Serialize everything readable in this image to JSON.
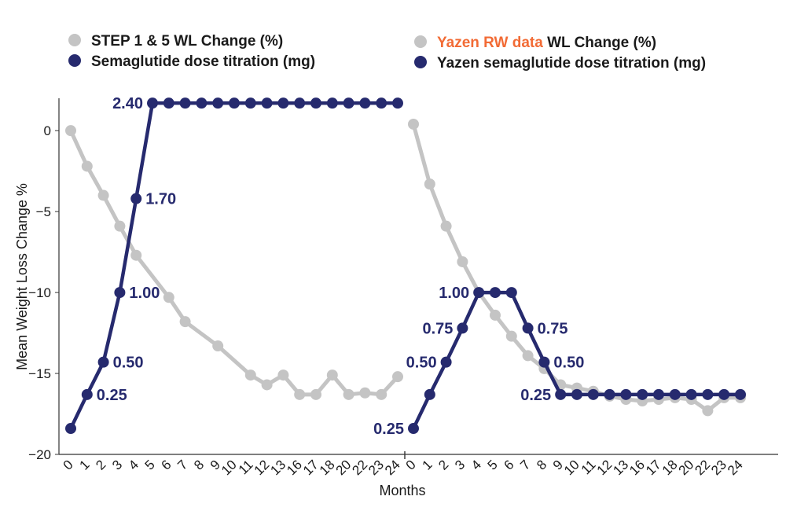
{
  "chart_data": {
    "type": "line",
    "ylabel": "Mean Weight Loss Change %",
    "xlabel": "Months",
    "ylim": [
      -20,
      2
    ],
    "yticks": [
      0,
      -5,
      -10,
      -15,
      -20
    ],
    "grid": false,
    "colors": {
      "weight": "#c4c4c4",
      "dose": "#262a6e",
      "highlight": "#f26b35"
    },
    "legend": [
      {
        "marker": "weight",
        "prefix": "",
        "text": "STEP 1 & 5 WL Change (%)"
      },
      {
        "marker": "dose",
        "prefix": "",
        "text": "Semaglutide dose titration (mg)"
      },
      {
        "marker": "weight",
        "prefix": "Yazen RW data",
        "text": " WL Change (%)"
      },
      {
        "marker": "dose",
        "prefix": "",
        "text": "Yazen semaglutide dose titration (mg)"
      }
    ],
    "panels": [
      {
        "name": "STEP 1 & 5",
        "categories": [
          "0",
          "1",
          "2",
          "3",
          "4",
          "5",
          "6",
          "7",
          "8",
          "9",
          "10",
          "11",
          "12",
          "13",
          "16",
          "17",
          "18",
          "20",
          "22",
          "23",
          "24"
        ],
        "series": [
          {
            "name": "STEP 1 & 5 WL Change (%)",
            "kind": "weight",
            "values": [
              0,
              -2.2,
              -4,
              -5.9,
              -7.7,
              null,
              -10.3,
              -11.8,
              null,
              -13.3,
              null,
              -15.1,
              -15.7,
              -15.1,
              -16.3,
              -16.3,
              -15.1,
              -16.3,
              -16.2,
              -16.3,
              -15.2
            ]
          },
          {
            "name": "Semaglutide dose titration (mg)",
            "kind": "dose",
            "values": [
              -18.4,
              -16.3,
              -14.3,
              -10,
              -4.2,
              1.7,
              1.7,
              1.7,
              1.7,
              1.7,
              1.7,
              1.7,
              1.7,
              1.7,
              1.7,
              1.7,
              1.7,
              1.7,
              1.7,
              1.7,
              1.7
            ],
            "labels": [
              {
                "index": 1,
                "text": "0.25",
                "side": "right"
              },
              {
                "index": 2,
                "text": "0.50",
                "side": "right"
              },
              {
                "index": 3,
                "text": "1.00",
                "side": "right"
              },
              {
                "index": 4,
                "text": "1.70",
                "side": "right"
              },
              {
                "index": 5,
                "text": "2.40",
                "side": "left"
              }
            ]
          }
        ]
      },
      {
        "name": "Yazen RW data",
        "categories": [
          "0",
          "1",
          "2",
          "3",
          "4",
          "5",
          "6",
          "7",
          "8",
          "9",
          "10",
          "11",
          "12",
          "13",
          "16",
          "17",
          "18",
          "20",
          "22",
          "23",
          "24"
        ],
        "series": [
          {
            "name": "Yazen RW data WL Change (%)",
            "kind": "weight",
            "values": [
              0.4,
              -3.3,
              -5.9,
              -8.1,
              -10,
              -11.4,
              -12.7,
              -13.9,
              -14.7,
              -15.7,
              -15.9,
              -16.1,
              -16.4,
              -16.6,
              -16.7,
              -16.6,
              -16.5,
              -16.6,
              -17.3,
              -16.5,
              -16.5
            ]
          },
          {
            "name": "Yazen semaglutide dose titration (mg)",
            "kind": "dose",
            "values": [
              -18.4,
              -16.3,
              -14.3,
              -12.2,
              -10,
              -10,
              -10,
              -12.2,
              -14.3,
              -16.3,
              -16.3,
              -16.3,
              -16.3,
              -16.3,
              -16.3,
              -16.3,
              -16.3,
              -16.3,
              -16.3,
              -16.3,
              -16.3
            ],
            "labels": [
              {
                "index": 0,
                "text": "0.25",
                "side": "left"
              },
              {
                "index": 2,
                "text": "0.50",
                "side": "left"
              },
              {
                "index": 3,
                "text": "0.75",
                "side": "left"
              },
              {
                "index": 4,
                "text": "1.00",
                "side": "left"
              },
              {
                "index": 7,
                "text": "0.75",
                "side": "right"
              },
              {
                "index": 8,
                "text": "0.50",
                "side": "right"
              },
              {
                "index": 9,
                "text": "0.25",
                "side": "left"
              }
            ]
          }
        ]
      }
    ]
  }
}
